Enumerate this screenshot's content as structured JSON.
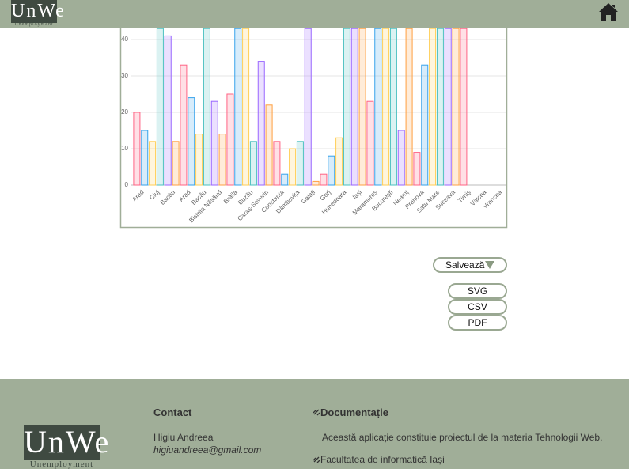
{
  "header": {
    "logo": "UnWe",
    "logo_sub": "Unemployment"
  },
  "chart_data": {
    "type": "bar",
    "categories": [
      "Arad",
      "Cluj",
      "Bacău",
      "Arad",
      "Bacău",
      "Bistrița Năsăud",
      "Brăila",
      "Buzău",
      "Caraș-Severin",
      "Constanța",
      "Dâmbovița",
      "Galați",
      "Gorj",
      "Hunedoara",
      "Iași",
      "Maramureș",
      "București",
      "Neamț",
      "Prahova",
      "Satu Mare",
      "Suceava",
      "Timiș",
      "Vâlcea",
      "Vrancea"
    ],
    "series": [
      {
        "values": [
          20,
          12,
          41,
          33,
          14,
          23,
          25,
          43,
          34,
          12,
          10,
          43,
          3,
          13,
          43,
          23,
          43,
          15,
          9,
          43,
          43,
          43,
          0,
          0
        ]
      },
      {
        "values": [
          15,
          43,
          12,
          24,
          43,
          14,
          43,
          12,
          22,
          3,
          12,
          1,
          8,
          43,
          43,
          43,
          43,
          43,
          33,
          43,
          43,
          0,
          0,
          0
        ]
      }
    ],
    "colors": [
      "#ff6384",
      "#36a2eb",
      "#ffce56",
      "#4bc0c0",
      "#9966ff",
      "#ff9f40"
    ],
    "ylim": [
      0,
      43
    ],
    "yticks": [
      0,
      10,
      20,
      30,
      40
    ],
    "grid": true
  },
  "controls": {
    "save": "Salvează",
    "formats": [
      "SVG",
      "CSV",
      "PDF"
    ]
  },
  "footer": {
    "logo": "UnWe",
    "logo_sub": "Unemployment",
    "contact": {
      "heading": "Contact",
      "name": "Higiu Andreea",
      "email": "higiuandreea@gmail.com"
    },
    "docs": {
      "heading": "Documentație",
      "text": "Această aplicație constituie proiectul de la materia Tehnologii Web.",
      "link": "Facultatea de informatică Iași"
    }
  }
}
